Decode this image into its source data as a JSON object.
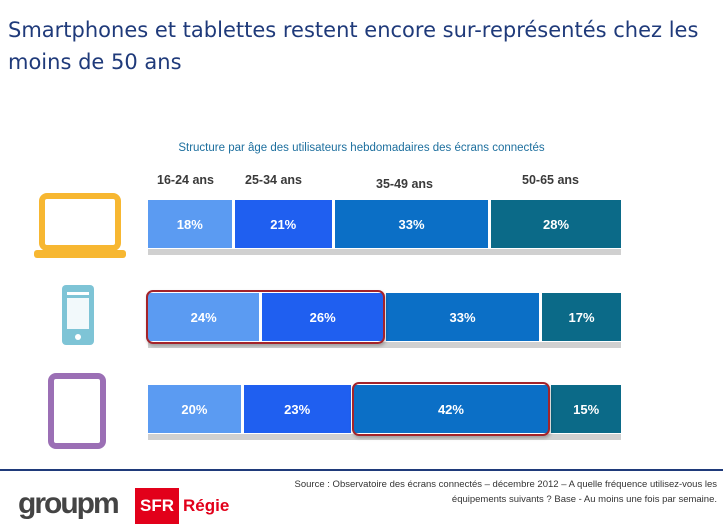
{
  "title": "Smartphones et tablettes restent encore  sur-représentés chez les moins de 50 ans",
  "chart_data": {
    "type": "bar",
    "stacked": "100%",
    "orientation": "horizontal",
    "title": "Structure par âge des utilisateurs hebdomadaires des écrans connectés",
    "categories": [
      "laptop-icon",
      "smartphone-icon",
      "tablet-icon"
    ],
    "series": [
      {
        "name": "16-24 ans",
        "values": [
          18,
          24,
          20
        ],
        "labels": [
          "18%",
          "24%",
          "20%"
        ],
        "color": "#5b9bf2"
      },
      {
        "name": "25-34 ans",
        "values": [
          21,
          26,
          23
        ],
        "labels": [
          "21%",
          "26%",
          "23%"
        ],
        "color": "#1f5ff0"
      },
      {
        "name": "35-49 ans",
        "values": [
          33,
          33,
          42
        ],
        "labels": [
          "33%",
          "33%",
          "42%"
        ],
        "color": "#0b6fc6"
      },
      {
        "name": "50-65 ans",
        "values": [
          28,
          17,
          15
        ],
        "labels": [
          "28%",
          "17%",
          "15%"
        ],
        "color": "#0b6a88"
      }
    ],
    "highlights": [
      {
        "row": 1,
        "from_series": 0,
        "to_series": 1
      },
      {
        "row": 2,
        "from_series": 2,
        "to_series": 2
      }
    ],
    "highlight_color": "#a3232a"
  },
  "icons": {
    "laptop": {
      "name": "laptop-icon",
      "color": "#f7b731"
    },
    "smartphone": {
      "name": "smartphone-icon",
      "color": "#7ec4d6"
    },
    "tablet": {
      "name": "tablet-icon",
      "color": "#9b6fb5"
    }
  },
  "footer": {
    "source": "Source : Observatoire des écrans connectés – décembre 2012 – A quelle fréquence utilisez-vous les équipements suivants ? Base - Au moins une fois par semaine.",
    "logo_groupm": "groupm",
    "logo_sfr": "SFR",
    "logo_regie": "Régie"
  }
}
